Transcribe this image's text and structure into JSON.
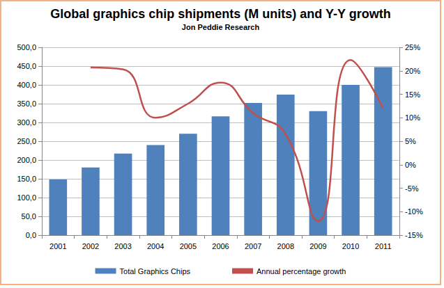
{
  "chart_data": {
    "type": "bar",
    "title": "Global graphics chip shipments (M units) and Y-Y growth",
    "subtitle": "Jon Peddie Research",
    "categories": [
      "2001",
      "2002",
      "2003",
      "2004",
      "2005",
      "2006",
      "2007",
      "2008",
      "2009",
      "2010",
      "2011"
    ],
    "series": [
      {
        "name": "Total Graphics Chips",
        "type": "bar",
        "color": "#4f81bd",
        "values": [
          148,
          180,
          217,
          240,
          270,
          316,
          352,
          374,
          330,
          400,
          447
        ]
      },
      {
        "name": "Annual percentage growth",
        "type": "line",
        "color": "#c0504d",
        "axis": "y2",
        "line_style": "smooth",
        "values": [
          null,
          20.7,
          20.3,
          10,
          13,
          17.5,
          11,
          6.5,
          -12,
          22.3,
          12
        ]
      }
    ],
    "ylim": [
      0,
      500
    ],
    "yticks": [
      {
        "value": 0,
        "label": "0,0"
      },
      {
        "value": 50,
        "label": "50,0"
      },
      {
        "value": 100,
        "label": "100,0"
      },
      {
        "value": 150,
        "label": "150,0"
      },
      {
        "value": 200,
        "label": "200,0"
      },
      {
        "value": 250,
        "label": "250,0"
      },
      {
        "value": 300,
        "label": "300,0"
      },
      {
        "value": 350,
        "label": "350,0"
      },
      {
        "value": 400,
        "label": "400,0"
      },
      {
        "value": 450,
        "label": "450,0"
      },
      {
        "value": 500,
        "label": "500,0"
      }
    ],
    "y2lim": [
      -15,
      25
    ],
    "y2ticks": [
      {
        "value": -15,
        "label": "-15%"
      },
      {
        "value": -10,
        "label": "-10%"
      },
      {
        "value": -5,
        "label": "-5%"
      },
      {
        "value": 0,
        "label": "0%"
      },
      {
        "value": 5,
        "label": "5%"
      },
      {
        "value": 10,
        "label": "10%"
      },
      {
        "value": 15,
        "label": "15%"
      },
      {
        "value": 20,
        "label": "20%"
      },
      {
        "value": 25,
        "label": "25%"
      }
    ],
    "grid": true,
    "legend": "bottom"
  }
}
